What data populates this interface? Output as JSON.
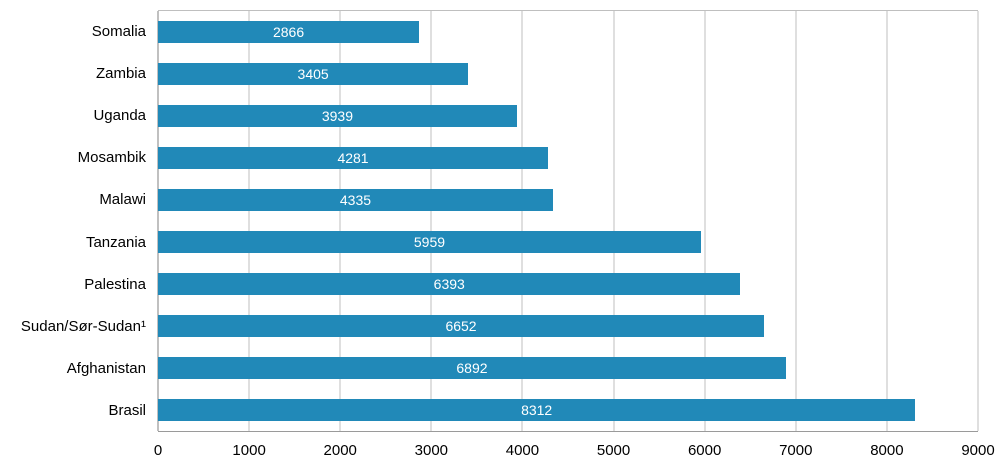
{
  "chart_data": {
    "type": "bar",
    "orientation": "horizontal",
    "title": "",
    "xlabel": "",
    "ylabel": "",
    "categories": [
      "Somalia",
      "Zambia",
      "Uganda",
      "Mosambik",
      "Malawi",
      "Tanzania",
      "Palestina",
      "Sudan/Sør-Sudan¹",
      "Afghanistan",
      "Brasil"
    ],
    "values": [
      2866,
      3405,
      3939,
      4281,
      4335,
      5959,
      6393,
      6652,
      6892,
      8312
    ],
    "value_labels": [
      "2866",
      "3405",
      "3939",
      "4281",
      "4335",
      "5959",
      "6393",
      "6652",
      "6892",
      "8312"
    ],
    "xlim": [
      0,
      9000
    ],
    "xticks": [
      0,
      1000,
      2000,
      3000,
      4000,
      5000,
      6000,
      7000,
      8000,
      9000
    ],
    "bar_color": "#2189b8",
    "value_label_color": "#ffffff",
    "gridline_color": "#bfbfbf",
    "grid": true,
    "legend_position": "none"
  }
}
